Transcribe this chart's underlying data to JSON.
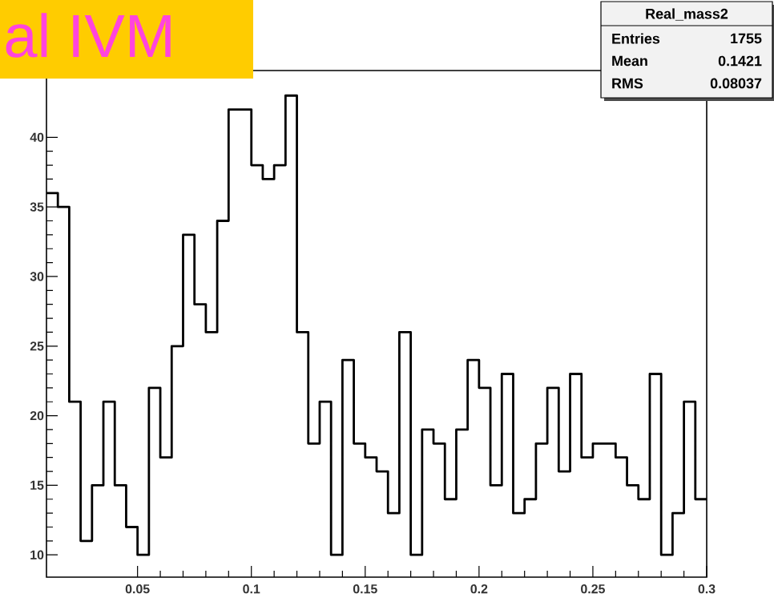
{
  "chart_data": {
    "type": "histogram",
    "title": "al IVM",
    "bins": [
      0.01,
      0.015,
      0.02,
      0.025,
      0.03,
      0.035,
      0.04,
      0.045,
      0.05,
      0.055,
      0.06,
      0.065,
      0.07,
      0.075,
      0.08,
      0.085,
      0.09,
      0.095,
      0.1,
      0.105,
      0.11,
      0.115,
      0.12,
      0.125,
      0.13,
      0.135,
      0.14,
      0.145,
      0.15,
      0.155,
      0.16,
      0.165,
      0.17,
      0.175,
      0.18,
      0.185,
      0.19,
      0.195,
      0.2,
      0.205,
      0.21,
      0.215,
      0.22,
      0.225,
      0.23,
      0.235,
      0.24,
      0.245,
      0.25,
      0.255,
      0.26,
      0.265,
      0.27,
      0.275,
      0.28,
      0.285,
      0.29,
      0.295,
      0.3
    ],
    "values": [
      36,
      35,
      21,
      11,
      15,
      21,
      15,
      12,
      10,
      22,
      17,
      25,
      33,
      28,
      26,
      34,
      42,
      42,
      38,
      37,
      38,
      43,
      26,
      18,
      21,
      10,
      24,
      18,
      17,
      16,
      13,
      26,
      10,
      19,
      18,
      14,
      19,
      24,
      22,
      15,
      23,
      13,
      14,
      18,
      22,
      16,
      23,
      17,
      18,
      18,
      17,
      15,
      14,
      23,
      10,
      13,
      21,
      14
    ],
    "color": "#000000",
    "xlim": [
      0.01,
      0.3
    ],
    "ylim": [
      8.4,
      44.8
    ],
    "xticks": [
      0.05,
      0.1,
      0.15,
      0.2,
      0.25,
      0.3
    ],
    "yticks": [
      10,
      15,
      20,
      25,
      30,
      35,
      40
    ],
    "annotations": [
      "Real_mass2",
      "Entries",
      "1755",
      "Mean",
      "0.1421",
      "RMS",
      "0.08037"
    ]
  }
}
